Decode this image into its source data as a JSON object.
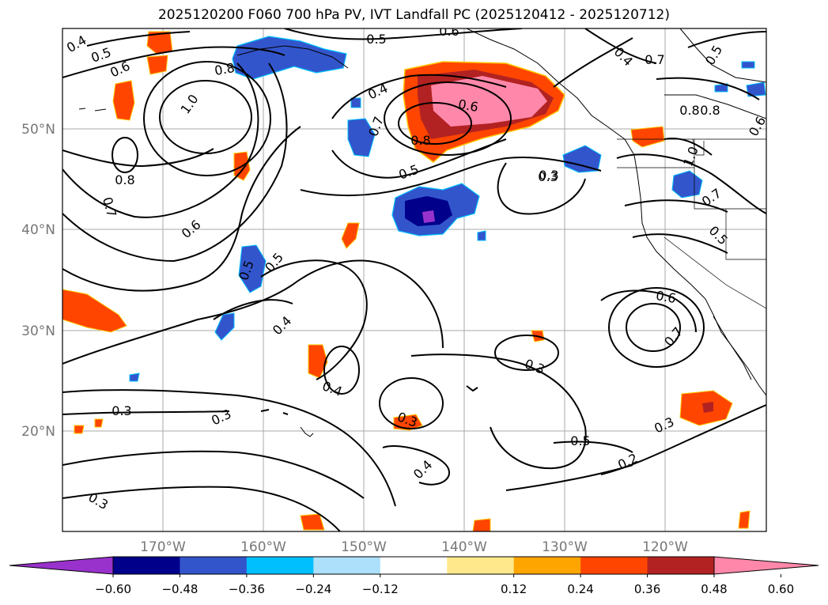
{
  "title": "2025120200 F060 700 hPa PV, IVT Landfall PC (2025120412 - 2025120712)",
  "map": {
    "lon_range": [
      -180,
      -110
    ],
    "lat_range": [
      10,
      60
    ],
    "gridlines": true,
    "lat_labels": [
      "50°N",
      "40°N",
      "30°N",
      "20°N"
    ],
    "lon_labels": [
      "170°W",
      "160°W",
      "150°W",
      "140°W",
      "130°W",
      "120°W"
    ],
    "contour_labels": [
      "0.4",
      "0.5",
      "0.6",
      "0.8",
      "1.0",
      "0.8",
      "0.7",
      "0.6",
      "0.5",
      "0.5",
      "0.6",
      "0.7",
      "0.5",
      "0.8",
      "0.6",
      "0.4",
      "0.7",
      "0.8",
      "0.5",
      "0.3",
      "0.8",
      "1.0",
      "0.7",
      "0.5",
      "0.4",
      "0.5",
      "0.6",
      "0.4",
      "0.4",
      "0.3",
      "0.3",
      "0.3",
      "0.3",
      "0.4",
      "0.5",
      "0.3",
      "0.2",
      "0.6",
      "0.7",
      "0.3",
      "0.3"
    ]
  },
  "colorbar": {
    "colors": [
      "#9932CC",
      "#00008B",
      "#3355CC",
      "#00BFFF",
      "#ADE0FA",
      "#FFFFFF",
      "#FFE88C",
      "#FFA500",
      "#FF4500",
      "#B22222",
      "#FF88AA"
    ],
    "tick_labels": [
      "−0.60",
      "−0.48",
      "−0.36",
      "−0.24",
      "−0.12",
      "0.12",
      "0.24",
      "0.36",
      "0.48",
      "0.60"
    ],
    "extend": "both"
  }
}
